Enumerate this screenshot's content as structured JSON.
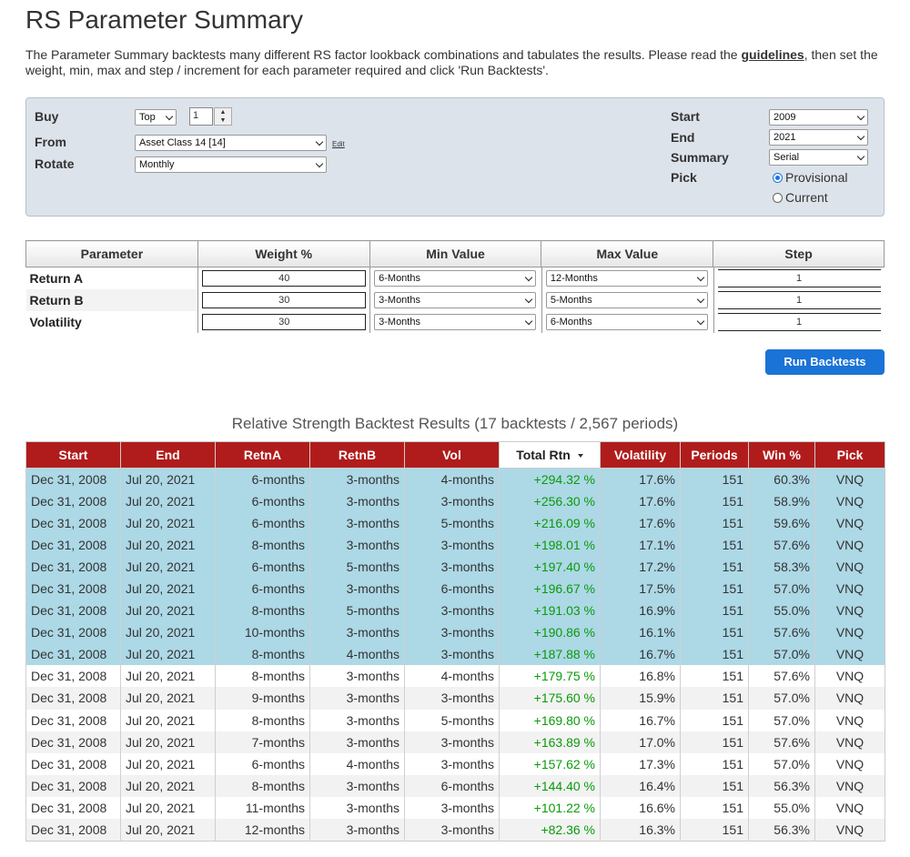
{
  "page": {
    "title": "RS Parameter Summary",
    "intro_before": "The Parameter Summary backtests many different RS factor lookback combinations and tabulates the results.  Please read the ",
    "intro_link": "guidelines",
    "intro_after": ", then set the weight, min, max and step / increment for each parameter required and click 'Run Backtests'."
  },
  "settings": {
    "buy_label": "Buy",
    "buy_mode": "Top",
    "buy_count": "1",
    "from_label": "From",
    "from_value": "Asset Class 14 [14]",
    "edit_label": "Edit",
    "rotate_label": "Rotate",
    "rotate_value": "Monthly",
    "start_label": "Start",
    "start_value": "2009",
    "end_label": "End",
    "end_value": "2021",
    "summary_label": "Summary",
    "summary_value": "Serial",
    "pick_label": "Pick",
    "pick_options": [
      "Provisional",
      "Current"
    ],
    "pick_selected": "Provisional"
  },
  "parameters": {
    "headers": [
      "Parameter",
      "Weight %",
      "Min Value",
      "Max Value",
      "Step"
    ],
    "rows": [
      {
        "name": "Return A",
        "weight": "40",
        "min": "6-Months",
        "max": "12-Months",
        "step": "1"
      },
      {
        "name": "Return B",
        "weight": "30",
        "min": "3-Months",
        "max": "5-Months",
        "step": "1"
      },
      {
        "name": "Volatility",
        "weight": "30",
        "min": "3-Months",
        "max": "6-Months",
        "step": "1"
      }
    ]
  },
  "run_button": "Run Backtests",
  "results": {
    "title": "Relative Strength Backtest Results (17 backtests / 2,567 periods)",
    "headers": [
      "Start",
      "End",
      "RetnA",
      "RetnB",
      "Vol",
      "Total Rtn",
      "Volatility",
      "Periods",
      "Win %",
      "Pick"
    ],
    "sorted_column": "Total Rtn",
    "highlight_color": "#add8e6",
    "header_color": "#b01c1c",
    "gain_color": "#0a9a0a",
    "rows": [
      [
        "Dec 31, 2008",
        "Jul 20, 2021",
        "6-months",
        "3-months",
        "4-months",
        "+294.32 %",
        "17.6%",
        "151",
        "60.3%",
        "VNQ"
      ],
      [
        "Dec 31, 2008",
        "Jul 20, 2021",
        "6-months",
        "3-months",
        "3-months",
        "+256.30 %",
        "17.6%",
        "151",
        "58.9%",
        "VNQ"
      ],
      [
        "Dec 31, 2008",
        "Jul 20, 2021",
        "6-months",
        "3-months",
        "5-months",
        "+216.09 %",
        "17.6%",
        "151",
        "59.6%",
        "VNQ"
      ],
      [
        "Dec 31, 2008",
        "Jul 20, 2021",
        "8-months",
        "3-months",
        "3-months",
        "+198.01 %",
        "17.1%",
        "151",
        "57.6%",
        "VNQ"
      ],
      [
        "Dec 31, 2008",
        "Jul 20, 2021",
        "6-months",
        "5-months",
        "3-months",
        "+197.40 %",
        "17.2%",
        "151",
        "58.3%",
        "VNQ"
      ],
      [
        "Dec 31, 2008",
        "Jul 20, 2021",
        "6-months",
        "3-months",
        "6-months",
        "+196.67 %",
        "17.5%",
        "151",
        "57.0%",
        "VNQ"
      ],
      [
        "Dec 31, 2008",
        "Jul 20, 2021",
        "8-months",
        "5-months",
        "3-months",
        "+191.03 %",
        "16.9%",
        "151",
        "55.0%",
        "VNQ"
      ],
      [
        "Dec 31, 2008",
        "Jul 20, 2021",
        "10-months",
        "3-months",
        "3-months",
        "+190.86 %",
        "16.1%",
        "151",
        "57.6%",
        "VNQ"
      ],
      [
        "Dec 31, 2008",
        "Jul 20, 2021",
        "8-months",
        "4-months",
        "3-months",
        "+187.88 %",
        "16.7%",
        "151",
        "57.0%",
        "VNQ"
      ],
      [
        "Dec 31, 2008",
        "Jul 20, 2021",
        "8-months",
        "3-months",
        "4-months",
        "+179.75 %",
        "16.8%",
        "151",
        "57.6%",
        "VNQ"
      ],
      [
        "Dec 31, 2008",
        "Jul 20, 2021",
        "9-months",
        "3-months",
        "3-months",
        "+175.60 %",
        "15.9%",
        "151",
        "57.0%",
        "VNQ"
      ],
      [
        "Dec 31, 2008",
        "Jul 20, 2021",
        "8-months",
        "3-months",
        "5-months",
        "+169.80 %",
        "16.7%",
        "151",
        "57.0%",
        "VNQ"
      ],
      [
        "Dec 31, 2008",
        "Jul 20, 2021",
        "7-months",
        "3-months",
        "3-months",
        "+163.89 %",
        "17.0%",
        "151",
        "57.6%",
        "VNQ"
      ],
      [
        "Dec 31, 2008",
        "Jul 20, 2021",
        "6-months",
        "4-months",
        "3-months",
        "+157.62 %",
        "17.3%",
        "151",
        "57.0%",
        "VNQ"
      ],
      [
        "Dec 31, 2008",
        "Jul 20, 2021",
        "8-months",
        "3-months",
        "6-months",
        "+144.40 %",
        "16.4%",
        "151",
        "56.3%",
        "VNQ"
      ],
      [
        "Dec 31, 2008",
        "Jul 20, 2021",
        "11-months",
        "3-months",
        "3-months",
        "+101.22 %",
        "16.6%",
        "151",
        "55.0%",
        "VNQ"
      ],
      [
        "Dec 31, 2008",
        "Jul 20, 2021",
        "12-months",
        "3-months",
        "3-months",
        "+82.36 %",
        "16.3%",
        "151",
        "56.3%",
        "VNQ"
      ]
    ],
    "highlighted_rows": 9
  }
}
